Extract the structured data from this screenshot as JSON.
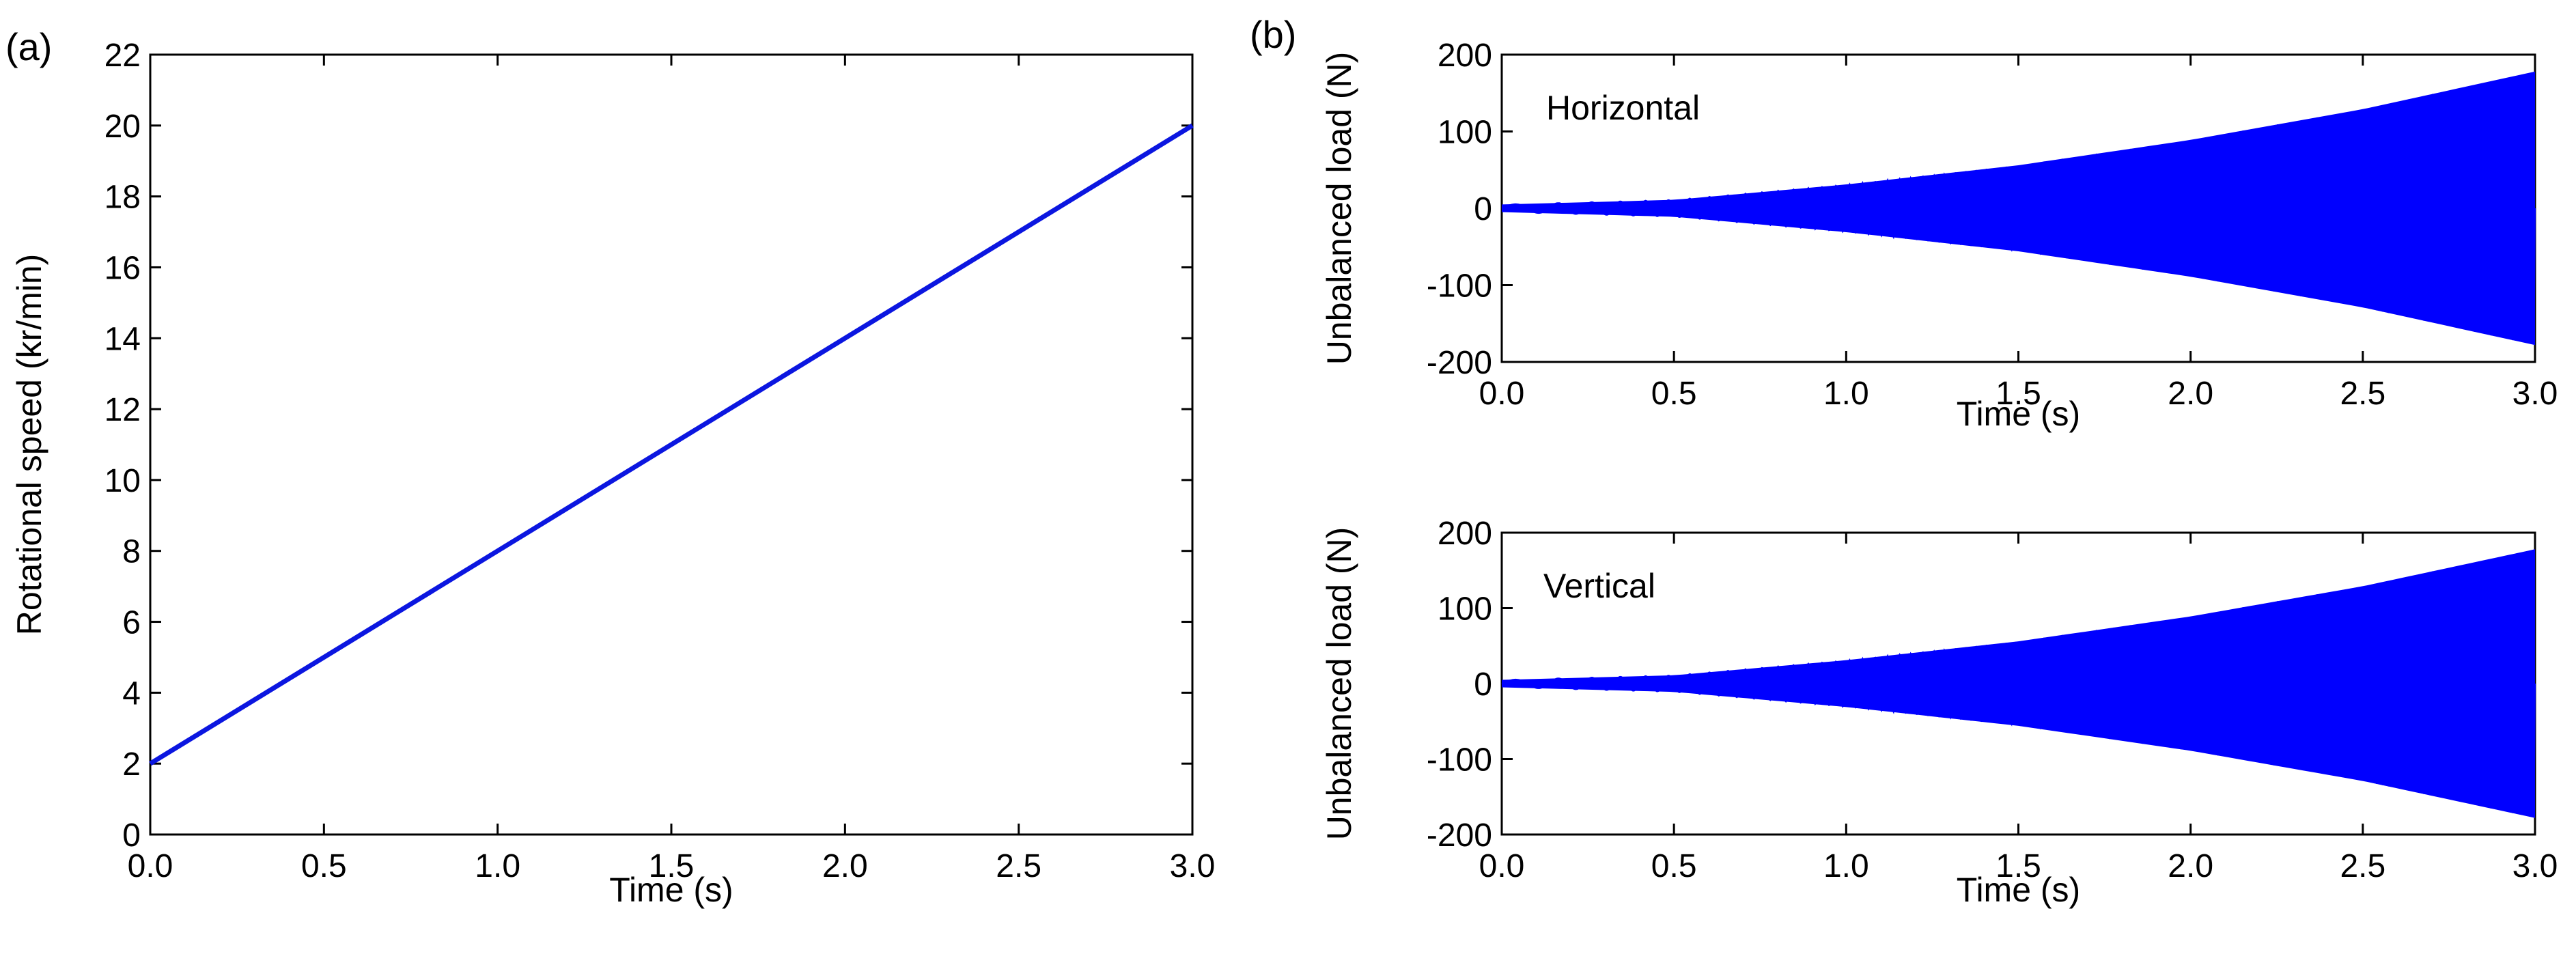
{
  "chart_data": [
    {
      "panel": "(a)",
      "type": "line",
      "title": "",
      "xlabel": "Time (s)",
      "ylabel": "Rotational speed (kr/min)",
      "xlim": [
        0,
        3.0
      ],
      "ylim": [
        0,
        22
      ],
      "xticks": [
        "0.0",
        "0.5",
        "1.0",
        "1.5",
        "2.0",
        "2.5",
        "3.0"
      ],
      "yticks": [
        "0",
        "2",
        "4",
        "6",
        "8",
        "10",
        "12",
        "14",
        "16",
        "18",
        "20",
        "22"
      ],
      "grid": false,
      "series": [
        {
          "name": "Rotational speed",
          "color": "#0b16e0",
          "x": [
            0.0,
            3.0
          ],
          "y": [
            2.0,
            20.0
          ]
        }
      ]
    },
    {
      "panel": "(b)",
      "type": "line",
      "annotation": "Horizontal",
      "xlabel": "Time (s)",
      "ylabel": "Unbalanced load (N)",
      "xlim": [
        0,
        3.0
      ],
      "ylim": [
        -200,
        200
      ],
      "xticks": [
        "0.0",
        "0.5",
        "1.0",
        "1.5",
        "2.0",
        "2.5",
        "3.0"
      ],
      "yticks": [
        "200",
        "100",
        "0",
        "-100",
        "-200"
      ],
      "grid": false,
      "series": [
        {
          "name": "Unbalanced load envelope (horizontal)",
          "color": "#0000ff",
          "x": [
            0.0,
            0.5,
            1.0,
            1.5,
            2.0,
            2.5,
            3.0
          ],
          "upper": [
            5,
            11,
            31,
            56,
            89,
            129,
            178
          ],
          "lower": [
            -5,
            -11,
            -31,
            -56,
            -89,
            -129,
            -178
          ]
        }
      ]
    },
    {
      "panel": "",
      "type": "line",
      "annotation": "Vertical",
      "xlabel": "Time (s)",
      "ylabel": "Unbalanced load (N)",
      "xlim": [
        0,
        3.0
      ],
      "ylim": [
        -200,
        200
      ],
      "xticks": [
        "0.0",
        "0.5",
        "1.0",
        "1.5",
        "2.0",
        "2.5",
        "3.0"
      ],
      "yticks": [
        "200",
        "100",
        "0",
        "-100",
        "-200"
      ],
      "grid": false,
      "series": [
        {
          "name": "Unbalanced load envelope (vertical)",
          "color": "#0000ff",
          "x": [
            0.0,
            0.5,
            1.0,
            1.5,
            2.0,
            2.5,
            3.0
          ],
          "upper": [
            5,
            11,
            31,
            56,
            89,
            129,
            178
          ],
          "lower": [
            -5,
            -11,
            -31,
            -56,
            -89,
            -129,
            -178
          ]
        }
      ]
    }
  ]
}
